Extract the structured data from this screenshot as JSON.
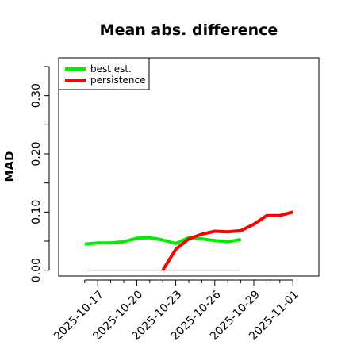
{
  "chart_data": {
    "type": "line",
    "title": "Mean abs. difference",
    "xlabel": "",
    "ylabel": "MAD",
    "xlim": [
      "2025-10-14",
      "2025-11-03"
    ],
    "ylim": [
      -0.01,
      0.365
    ],
    "y_ticks": [
      0.0,
      0.05,
      0.1,
      0.15,
      0.2,
      0.25,
      0.3,
      0.35
    ],
    "y_tick_labels": [
      {
        "value": 0.0,
        "label": "0.00"
      },
      {
        "value": 0.1,
        "label": "0.10"
      },
      {
        "value": 0.2,
        "label": "0.20"
      },
      {
        "value": 0.3,
        "label": "0.30"
      }
    ],
    "x_ticks": [
      "2025-10-16",
      "2025-10-17",
      "2025-10-18",
      "2025-10-19",
      "2025-10-20",
      "2025-10-21",
      "2025-10-22",
      "2025-10-23",
      "2025-10-24",
      "2025-10-25",
      "2025-10-26",
      "2025-10-27",
      "2025-10-28",
      "2025-10-29",
      "2025-10-30",
      "2025-10-31",
      "2025-11-01"
    ],
    "x_tick_labels": [
      {
        "date": "2025-10-17",
        "label": "2025-10-17"
      },
      {
        "date": "2025-10-20",
        "label": "2025-10-20"
      },
      {
        "date": "2025-10-23",
        "label": "2025-10-23"
      },
      {
        "date": "2025-10-26",
        "label": "2025-10-26"
      },
      {
        "date": "2025-10-29",
        "label": "2025-10-29"
      },
      {
        "date": "2025-11-01",
        "label": "2025-11-01"
      }
    ],
    "legend_position": "top-left",
    "reference_line": {
      "y": 0.0,
      "from": "2025-10-16",
      "to": "2025-10-28",
      "color": "#555555"
    },
    "series": [
      {
        "name": "best est.",
        "color": "#00ee00",
        "x": [
          "2025-10-16",
          "2025-10-17",
          "2025-10-18",
          "2025-10-19",
          "2025-10-20",
          "2025-10-21",
          "2025-10-22",
          "2025-10-23",
          "2025-10-24",
          "2025-10-25",
          "2025-10-26",
          "2025-10-27",
          "2025-10-28"
        ],
        "values": [
          0.045,
          0.047,
          0.047,
          0.049,
          0.055,
          0.056,
          0.052,
          0.046,
          0.056,
          0.054,
          0.051,
          0.049,
          0.053
        ]
      },
      {
        "name": "persistence",
        "color": "#ff0000",
        "x": [
          "2025-10-22",
          "2025-10-23",
          "2025-10-24",
          "2025-10-25",
          "2025-10-26",
          "2025-10-27",
          "2025-10-28",
          "2025-10-29",
          "2025-10-30",
          "2025-10-31",
          "2025-11-01"
        ],
        "values": [
          0.0,
          0.036,
          0.054,
          0.062,
          0.067,
          0.066,
          0.068,
          0.079,
          0.094,
          0.094,
          0.1
        ]
      }
    ]
  }
}
